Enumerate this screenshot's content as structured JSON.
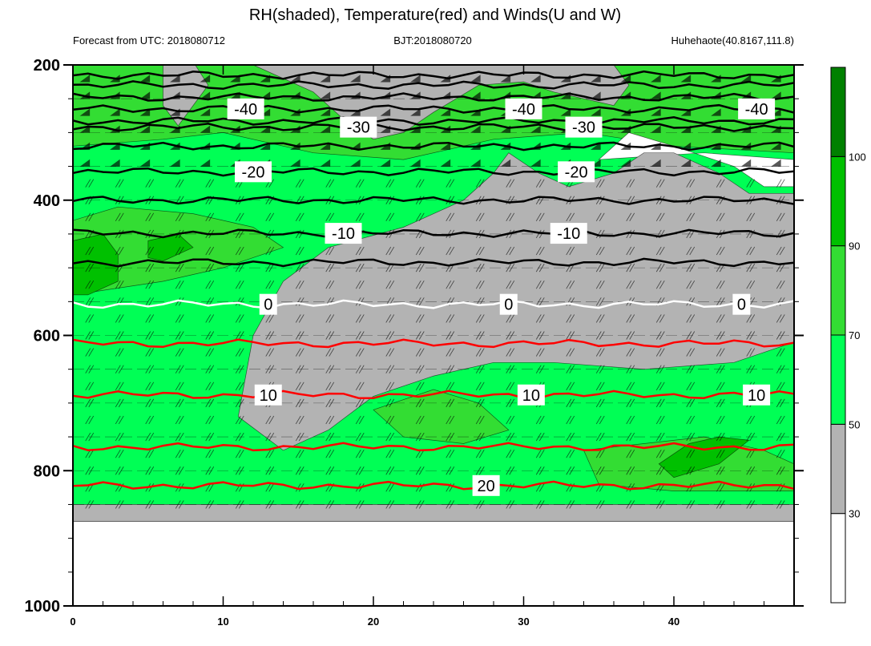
{
  "header": {
    "title": "RH(shaded), Temperature(red) and Winds(U and W)",
    "left_info": "Forecast from UTC: 2018080712",
    "center_info": "BJT:2018080720",
    "right_info": "Huhehaote(40.8167,111.8)"
  },
  "chart_data": {
    "type": "heatmap",
    "title": "RH(shaded), Temperature(red) and Winds(U and W)",
    "xlim": [
      0,
      48
    ],
    "ylim": [
      1000,
      200
    ],
    "x_ticks": [
      "0",
      "10",
      "20",
      "30",
      "40"
    ],
    "x_tick_values": [
      0,
      10,
      20,
      30,
      40
    ],
    "y_ticks": [
      "200",
      "400",
      "600",
      "800",
      "1000"
    ],
    "y_tick_values": [
      200,
      400,
      600,
      800,
      1000
    ],
    "colorbar": {
      "levels": [
        "30",
        "50",
        "70",
        "90",
        "100"
      ],
      "colors": [
        "#ffffff",
        "#b3b3b3",
        "#00ff55",
        "#33dd33",
        "#00c000",
        "#008000"
      ]
    },
    "temperature_contours": [
      {
        "label": "-40",
        "p": 265,
        "color": "#000000",
        "labels_at": [
          11.5,
          30.0,
          45.5
        ]
      },
      {
        "label": "-30",
        "p": 292,
        "color": "#000000",
        "labels_at": [
          19.0,
          34.0
        ]
      },
      {
        "label": "-20",
        "p": 358,
        "color": "#000000",
        "labels_at": [
          12.0,
          33.5
        ]
      },
      {
        "label": "-10",
        "p": 449,
        "color": "#000000",
        "labels_at": [
          18.0,
          33.0
        ]
      },
      {
        "label": "0",
        "p": 554,
        "color": "#ffffff",
        "labels_at": [
          13.0,
          29.0,
          44.5
        ]
      },
      {
        "label": "10",
        "p": 688,
        "color": "#ff0000",
        "labels_at": [
          13.0,
          30.5,
          45.5
        ]
      },
      {
        "label": "20",
        "p": 822,
        "color": "#ff0000",
        "labels_at": [
          27.5
        ]
      }
    ],
    "colors": {
      "rh_lt30": "#ffffff",
      "rh_30_50": "#b3b3b3",
      "rh_50_70": "#00ff55",
      "rh_70_90": "#33dd33",
      "rh_90_100": "#00c000",
      "rh_gt100": "#008000",
      "temperature": "#ff0000",
      "temperature_upper": "#000000"
    }
  }
}
